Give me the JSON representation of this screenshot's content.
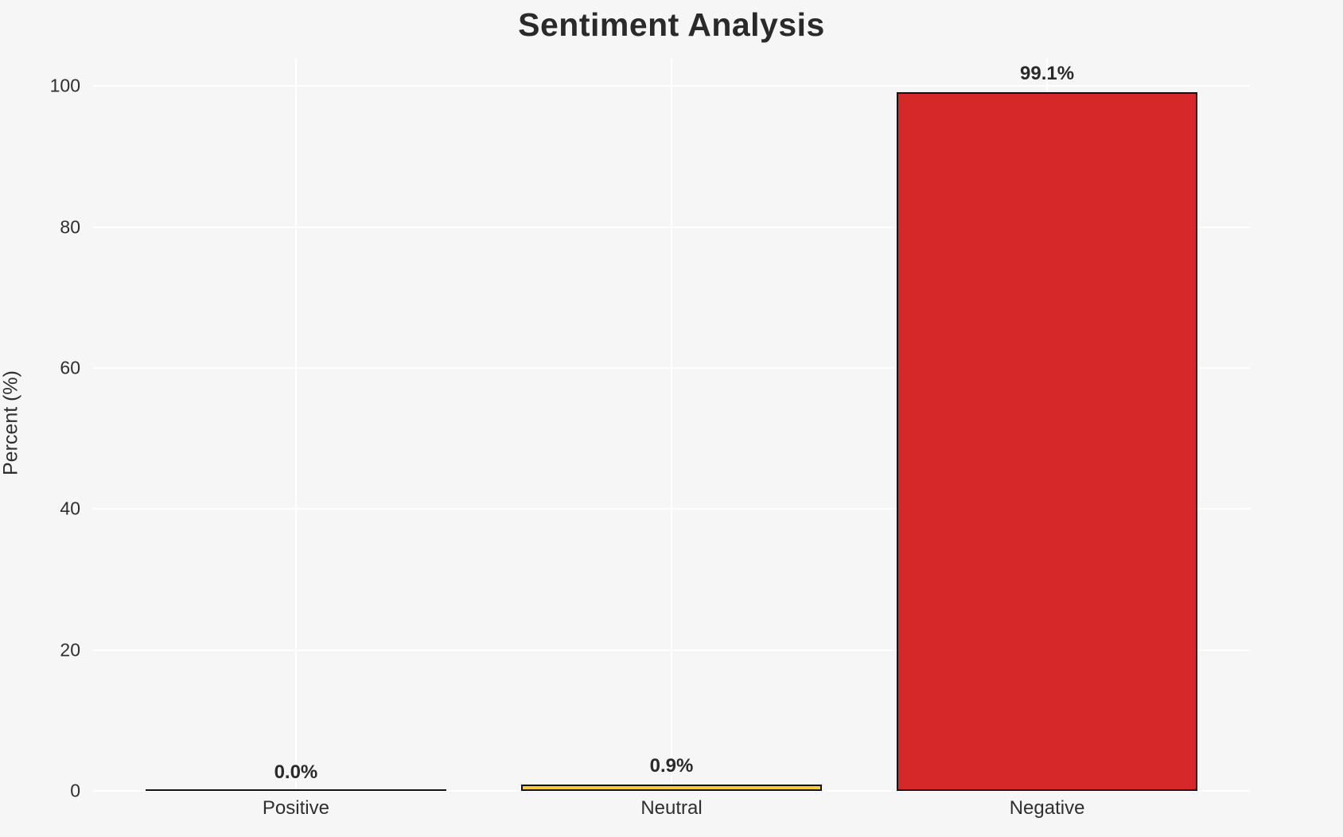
{
  "chart_data": {
    "type": "bar",
    "title": "Sentiment Analysis",
    "xlabel": "",
    "ylabel": "Percent (%)",
    "categories": [
      "Positive",
      "Neutral",
      "Negative"
    ],
    "values": [
      0.0,
      0.9,
      99.1
    ],
    "value_labels": [
      "0.0%",
      "0.9%",
      "99.1%"
    ],
    "bar_colors": [
      "#2ca02c",
      "#f2ce3c",
      "#d62828"
    ],
    "bar_edge_color": "#111111",
    "yticks": [
      0,
      20,
      40,
      60,
      80,
      100
    ],
    "ytick_labels": [
      "0",
      "20",
      "40",
      "60",
      "80",
      "100"
    ],
    "ylim": [
      0,
      104
    ],
    "grid": true,
    "grid_color": "#ffffff",
    "background_color": "#f6f6f6",
    "text_color": "#2a2a2a",
    "legend": "none"
  }
}
